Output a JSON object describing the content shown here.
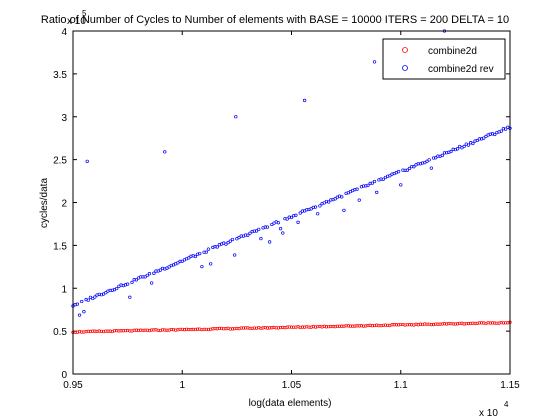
{
  "chart_data": {
    "type": "scatter",
    "title": "Ratio of Number of Cycles to Number of elements with BASE = 10000 ITERS = 200 DELTA = 10",
    "xlabel": "log(data elements)",
    "ylabel": "cycles/data",
    "x_exponent_label": "x 10",
    "x_exponent_power": "4",
    "y_exponent_label": "x 10",
    "y_exponent_power": "5",
    "xlim": [
      0.95,
      1.15
    ],
    "ylim": [
      0,
      4
    ],
    "x_tick_labels": [
      "0.95",
      "1",
      "1.05",
      "1.1",
      "1.15"
    ],
    "y_tick_labels": [
      "0",
      "0.5",
      "1",
      "1.5",
      "2",
      "2.5",
      "3",
      "3.5",
      "4"
    ],
    "grid": false,
    "legend_position": "top-right",
    "series": [
      {
        "name": "combine2d",
        "color": "#ff0000",
        "x_start": 0.95,
        "x_step": 0.001,
        "y_start": 0.49,
        "y_end": 0.6
      },
      {
        "name": "combine2d rev",
        "color": "#0000ff",
        "x_start": 0.95,
        "x_step": 0.001,
        "y_start": 0.8,
        "y_end": 2.88,
        "outliers": [
          {
            "x": 0.9565,
            "y": 2.48
          },
          {
            "x": 0.992,
            "y": 2.59
          },
          {
            "x": 1.0245,
            "y": 3.0
          },
          {
            "x": 1.056,
            "y": 3.19
          },
          {
            "x": 1.088,
            "y": 3.64
          },
          {
            "x": 1.12,
            "y": 4.0
          }
        ]
      }
    ]
  }
}
